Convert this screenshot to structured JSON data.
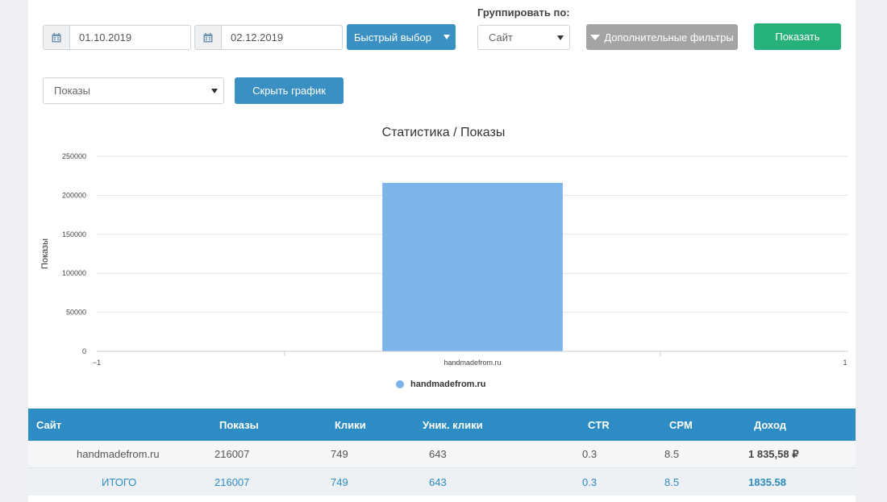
{
  "filters": {
    "date_from": "01.10.2019",
    "date_to": "02.12.2019",
    "quick_select_label": "Быстрый выбор",
    "group_by_label": "Группировать по:",
    "group_by_value": "Сайт",
    "extra_filters_label": "Дополнительные фильтры",
    "show_label": "Показать",
    "metric_value": "Показы",
    "hide_chart_label": "Скрыть график"
  },
  "colors": {
    "primary_blue": "#3a8fc3",
    "green": "#26b07a",
    "gray_button": "#a4a4a4",
    "bar": "#7cb4ea",
    "table_header": "#2d8cc4"
  },
  "chart_data": {
    "type": "bar",
    "title": "Статистика / Показы",
    "ylabel": "Показы",
    "xlabel": "",
    "categories": [
      "handmadefrom.ru"
    ],
    "series": [
      {
        "name": "handmadefrom.ru",
        "values": [
          216007
        ]
      }
    ],
    "ylim": [
      0,
      250000
    ],
    "yticks": [
      "0",
      "50000",
      "100000",
      "150000",
      "200000",
      "250000"
    ],
    "xtick_left": "−1",
    "xtick_right": "1",
    "grid": true,
    "legend": "bottom-center"
  },
  "table": {
    "headers": [
      "Сайт",
      "Показы",
      "Клики",
      "Уник. клики",
      "CTR",
      "CPM",
      "Доход"
    ],
    "rows": [
      {
        "site": "handmadefrom.ru",
        "impressions": "216007",
        "clicks": "749",
        "unique_clicks": "643",
        "ctr": "0.3",
        "cpm": "8.5",
        "income": "1 835,58 ₽"
      }
    ],
    "total": {
      "site": "ИТОГО",
      "impressions": "216007",
      "clicks": "749",
      "unique_clicks": "643",
      "ctr": "0.3",
      "cpm": "8.5",
      "income": "1835.58"
    }
  }
}
